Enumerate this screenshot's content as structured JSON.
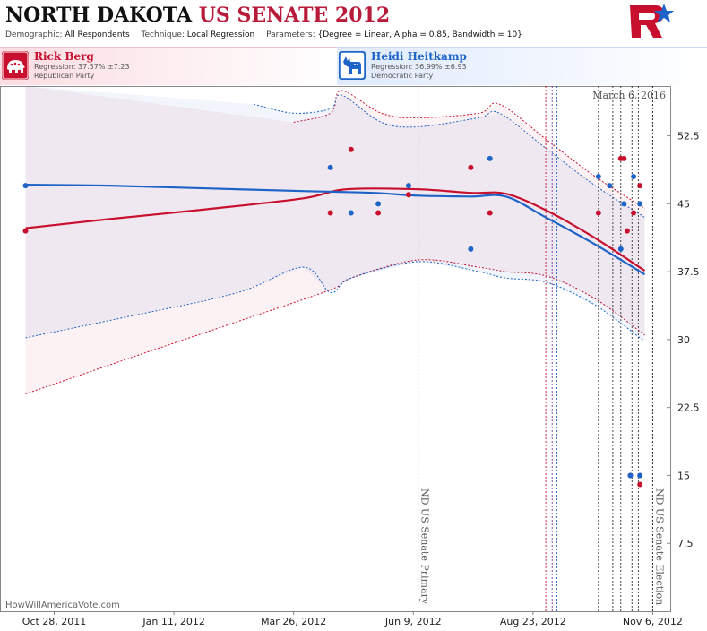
{
  "header": {
    "title_state": "NORTH DAKOTA",
    "title_race": "US SENATE 2012",
    "demographic_label": "Demographic:",
    "demographic_value": "All Respondents",
    "technique_label": "Technique:",
    "technique_value": "Local Regression",
    "parameters_label": "Parameters:",
    "parameters_value": "{Degree = Linear, Alpha = 0.85, Bandwidth = 10}"
  },
  "candidates": [
    {
      "name": "Rick Berg",
      "regression": "Regression: 37.57% ±7.23",
      "party": "Republican Party",
      "color": "#c8102e",
      "icon": "elephant-icon"
    },
    {
      "name": "Heidi Heitkamp",
      "regression": "Regression: 36.99% ±6.93",
      "party": "Democratic Party",
      "color": "#1e64c8",
      "icon": "donkey-icon"
    }
  ],
  "chart_data": {
    "type": "line",
    "date_label": "March 6, 2016",
    "credit": "HowWillAmericaVote.com",
    "x_ticks": [
      "Oct 28, 2011",
      "Jan 11, 2012",
      "Mar 26, 2012",
      "Jun 9, 2012",
      "Aug 23, 2012",
      "Nov 6, 2012"
    ],
    "xlim": [
      "2011-09-24",
      "2012-11-17"
    ],
    "y_ticks": [
      "52.5",
      "45",
      "37.5",
      "30",
      "22.5",
      "15",
      "7.5"
    ],
    "ylim": [
      0,
      58
    ],
    "events": [
      {
        "date": "2012-06-12",
        "label": "ND US Senate Primary"
      },
      {
        "date": "2012-11-06",
        "label": "ND US Senate Election"
      }
    ],
    "poll_lines": [
      "2012-08-31",
      "2012-09-04",
      "2012-09-07",
      "2012-10-03",
      "2012-10-12",
      "2012-10-17",
      "2012-10-24",
      "2012-10-28",
      "2012-11-06"
    ],
    "series": [
      {
        "name": "Rick Berg",
        "color": "#c8102e",
        "points": [
          {
            "x": "2011-10-10",
            "y": 42
          },
          {
            "x": "2012-04-18",
            "y": 44
          },
          {
            "x": "2012-05-01",
            "y": 51
          },
          {
            "x": "2012-05-18",
            "y": 44
          },
          {
            "x": "2012-06-06",
            "y": 46
          },
          {
            "x": "2012-07-15",
            "y": 49
          },
          {
            "x": "2012-07-27",
            "y": 44
          },
          {
            "x": "2012-10-03",
            "y": 44
          },
          {
            "x": "2012-10-17",
            "y": 50
          },
          {
            "x": "2012-10-19",
            "y": 50
          },
          {
            "x": "2012-10-21",
            "y": 42
          },
          {
            "x": "2012-10-25",
            "y": 44
          },
          {
            "x": "2012-10-29",
            "y": 47
          },
          {
            "x": "2012-10-23",
            "y": 15
          },
          {
            "x": "2012-10-29",
            "y": 14
          }
        ],
        "trend": [
          {
            "x": "2011-10-10",
            "y": 42.3
          },
          {
            "x": "2011-12-01",
            "y": 43.3
          },
          {
            "x": "2012-02-01",
            "y": 44.4
          },
          {
            "x": "2012-04-01",
            "y": 45.6
          },
          {
            "x": "2012-04-28",
            "y": 46.6
          },
          {
            "x": "2012-06-12",
            "y": 46.6
          },
          {
            "x": "2012-07-15",
            "y": 46.2
          },
          {
            "x": "2012-08-06",
            "y": 46.1
          },
          {
            "x": "2012-09-01",
            "y": 44.2
          },
          {
            "x": "2012-10-01",
            "y": 41.2
          },
          {
            "x": "2012-11-01",
            "y": 37.6
          }
        ],
        "upper": [
          {
            "x": "2012-03-26",
            "y": 54
          },
          {
            "x": "2012-04-18",
            "y": 55
          },
          {
            "x": "2012-04-25",
            "y": 57.5
          },
          {
            "x": "2012-05-20",
            "y": 55
          },
          {
            "x": "2012-06-12",
            "y": 54.5
          },
          {
            "x": "2012-07-20",
            "y": 55
          },
          {
            "x": "2012-08-02",
            "y": 56
          },
          {
            "x": "2012-09-01",
            "y": 52
          },
          {
            "x": "2012-10-01",
            "y": 48
          },
          {
            "x": "2012-11-01",
            "y": 44.5
          }
        ],
        "lower": [
          {
            "x": "2011-10-10",
            "y": 24
          },
          {
            "x": "2011-12-15",
            "y": 28
          },
          {
            "x": "2012-02-20",
            "y": 32
          },
          {
            "x": "2012-04-18",
            "y": 35.5
          },
          {
            "x": "2012-05-01",
            "y": 36.8
          },
          {
            "x": "2012-06-12",
            "y": 38.8
          },
          {
            "x": "2012-07-20",
            "y": 38
          },
          {
            "x": "2012-08-06",
            "y": 37.5
          },
          {
            "x": "2012-09-01",
            "y": 37
          },
          {
            "x": "2012-10-01",
            "y": 34.5
          },
          {
            "x": "2012-11-01",
            "y": 30.5
          }
        ]
      },
      {
        "name": "Heidi Heitkamp",
        "color": "#1e64c8",
        "points": [
          {
            "x": "2011-10-10",
            "y": 47
          },
          {
            "x": "2012-04-18",
            "y": 49
          },
          {
            "x": "2012-05-01",
            "y": 44
          },
          {
            "x": "2012-05-18",
            "y": 45
          },
          {
            "x": "2012-06-06",
            "y": 47
          },
          {
            "x": "2012-07-15",
            "y": 40
          },
          {
            "x": "2012-07-27",
            "y": 50
          },
          {
            "x": "2012-10-03",
            "y": 48
          },
          {
            "x": "2012-10-10",
            "y": 47
          },
          {
            "x": "2012-10-17",
            "y": 40
          },
          {
            "x": "2012-10-19",
            "y": 45
          },
          {
            "x": "2012-10-25",
            "y": 48
          },
          {
            "x": "2012-10-29",
            "y": 45
          },
          {
            "x": "2012-10-23",
            "y": 15
          },
          {
            "x": "2012-10-29",
            "y": 15
          }
        ],
        "trend": [
          {
            "x": "2011-10-10",
            "y": 47.1
          },
          {
            "x": "2011-12-01",
            "y": 47
          },
          {
            "x": "2012-02-01",
            "y": 46.7
          },
          {
            "x": "2012-04-01",
            "y": 46.4
          },
          {
            "x": "2012-05-15",
            "y": 46.2
          },
          {
            "x": "2012-06-12",
            "y": 45.9
          },
          {
            "x": "2012-07-15",
            "y": 45.8
          },
          {
            "x": "2012-08-06",
            "y": 45.8
          },
          {
            "x": "2012-09-01",
            "y": 43.4
          },
          {
            "x": "2012-10-01",
            "y": 40.5
          },
          {
            "x": "2012-11-01",
            "y": 37.2
          }
        ],
        "upper": [
          {
            "x": "2012-03-01",
            "y": 56
          },
          {
            "x": "2012-03-26",
            "y": 55
          },
          {
            "x": "2012-04-18",
            "y": 55.5
          },
          {
            "x": "2012-04-25",
            "y": 57
          },
          {
            "x": "2012-05-20",
            "y": 54
          },
          {
            "x": "2012-06-12",
            "y": 53.5
          },
          {
            "x": "2012-07-20",
            "y": 54.5
          },
          {
            "x": "2012-08-02",
            "y": 55
          },
          {
            "x": "2012-09-01",
            "y": 51
          },
          {
            "x": "2012-10-01",
            "y": 47
          },
          {
            "x": "2012-11-01",
            "y": 43.5
          }
        ],
        "lower": [
          {
            "x": "2011-10-10",
            "y": 30.2
          },
          {
            "x": "2011-12-15",
            "y": 32.6
          },
          {
            "x": "2012-02-20",
            "y": 35.2
          },
          {
            "x": "2012-04-01",
            "y": 38
          },
          {
            "x": "2012-04-18",
            "y": 35.2
          },
          {
            "x": "2012-05-01",
            "y": 36.8
          },
          {
            "x": "2012-06-12",
            "y": 38.6
          },
          {
            "x": "2012-07-20",
            "y": 37.5
          },
          {
            "x": "2012-08-06",
            "y": 36.8
          },
          {
            "x": "2012-09-01",
            "y": 36.3
          },
          {
            "x": "2012-10-01",
            "y": 33.8
          },
          {
            "x": "2012-11-01",
            "y": 29.8
          }
        ]
      }
    ]
  }
}
